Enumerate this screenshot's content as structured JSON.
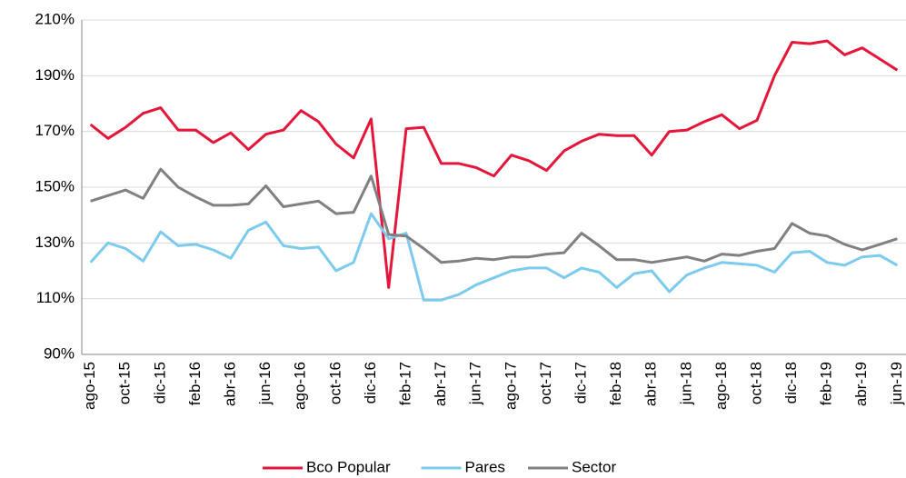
{
  "chart_data": {
    "type": "line",
    "categories": [
      "ago-15",
      null,
      "oct-15",
      null,
      "dic-15",
      null,
      "feb-16",
      null,
      "abr-16",
      null,
      "jun-16",
      null,
      "ago-16",
      null,
      "oct-16",
      null,
      "dic-16",
      null,
      "feb-17",
      null,
      "abr-17",
      null,
      "jun-17",
      null,
      "ago-17",
      null,
      "oct-17",
      null,
      "dic-17",
      null,
      "feb-18",
      null,
      "abr-18",
      null,
      "jun-18",
      null,
      "ago-18",
      null,
      "oct-18",
      null,
      "dic-18",
      null,
      "feb-19",
      null,
      "abr-19",
      null,
      "jun-19"
    ],
    "series": [
      {
        "name": "Bco Popular",
        "color": "#e4163a",
        "values": [
          172.5,
          167.5,
          171.5,
          176.5,
          178.5,
          170.5,
          170.5,
          166,
          169.5,
          163.5,
          169,
          170.5,
          177.5,
          173.5,
          165.5,
          160.5,
          174.5,
          114,
          171,
          171.5,
          158.5,
          158.5,
          157,
          154,
          161.5,
          159.5,
          156,
          163,
          166.5,
          169,
          168.5,
          168.5,
          161.5,
          170,
          170.5,
          173.5,
          176,
          171,
          174,
          190,
          202,
          201.5,
          202.5,
          197.5,
          200,
          196,
          192
        ]
      },
      {
        "name": "Pares",
        "color": "#7ccbee",
        "values": [
          123,
          130,
          128,
          123.5,
          134,
          129,
          129.5,
          127.5,
          124.5,
          134.5,
          137.5,
          129,
          128,
          128.5,
          120,
          123,
          140.5,
          131.5,
          133.5,
          109.5,
          109.5,
          111.5,
          115,
          117.5,
          120,
          121,
          121,
          117.5,
          121,
          119.5,
          114,
          119,
          120,
          112.5,
          118.5,
          121,
          123,
          122.5,
          122,
          119.5,
          126.5,
          127,
          123,
          122,
          125,
          125.5,
          122
        ]
      },
      {
        "name": "Sector",
        "color": "#808080",
        "values": [
          145,
          147,
          149,
          146,
          156.5,
          150,
          146.5,
          143.5,
          143.5,
          144,
          150.5,
          143,
          144,
          145,
          140.5,
          141,
          154,
          133,
          132.5,
          128,
          123,
          123.5,
          124.5,
          124,
          125,
          125,
          126,
          126.5,
          133.5,
          129,
          124,
          124,
          123,
          124,
          125,
          123.5,
          126,
          125.5,
          127,
          128,
          137,
          133.5,
          132.5,
          129.5,
          127.5,
          129.5,
          131.5
        ]
      }
    ],
    "ylim": [
      90,
      210
    ],
    "yticks": [
      {
        "value": 90,
        "label": "90%"
      },
      {
        "value": 110,
        "label": "110%"
      },
      {
        "value": 130,
        "label": "130%"
      },
      {
        "value": 150,
        "label": "150%"
      },
      {
        "value": 170,
        "label": "170%"
      },
      {
        "value": 190,
        "label": "190%"
      },
      {
        "value": 210,
        "label": "210%"
      }
    ],
    "grid": true,
    "legend": "bottom"
  }
}
